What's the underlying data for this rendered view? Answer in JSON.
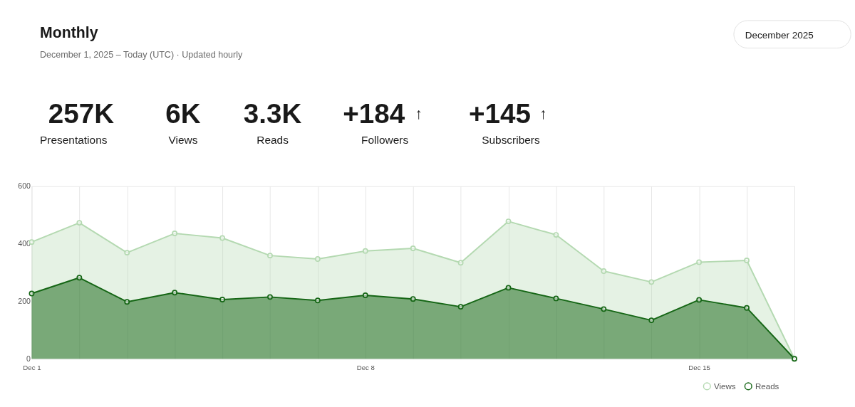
{
  "chart_data": [
    {
      "type": "other",
      "title": "Monthly",
      "subtitle": "December 1, 2025 – Today (UTC)  ·  Updated hourly",
      "annotations": [
        "December 2025",
        "257K",
        "Presentations",
        "6K",
        "Views",
        "3.3K",
        "Reads",
        "+184",
        "↑",
        "Followers",
        "+145",
        "↑",
        "Subscribers"
      ]
    },
    {
      "type": "area",
      "categories": [
        "Dec 1",
        null,
        null,
        null,
        null,
        null,
        null,
        "Dec 8",
        null,
        null,
        null,
        null,
        null,
        null,
        "Dec 15",
        null,
        null
      ],
      "series": [
        {
          "name": "Views",
          "color": "#b4d9b1",
          "values": [
            406,
            473,
            369,
            436,
            420,
            359,
            347,
            375,
            384,
            334,
            478,
            431,
            305,
            267,
            336,
            342,
            0
          ]
        },
        {
          "name": "Reads",
          "color": "#156615",
          "values": [
            227,
            282,
            198,
            230,
            206,
            215,
            203,
            221,
            208,
            181,
            247,
            210,
            173,
            134,
            205,
            177,
            0
          ]
        }
      ],
      "ylim": [
        0,
        600
      ],
      "yticks": [
        0,
        200,
        400,
        600
      ],
      "grid": "x",
      "legend": "bottom right",
      "marker": "circle",
      "line_style": "solid"
    }
  ]
}
